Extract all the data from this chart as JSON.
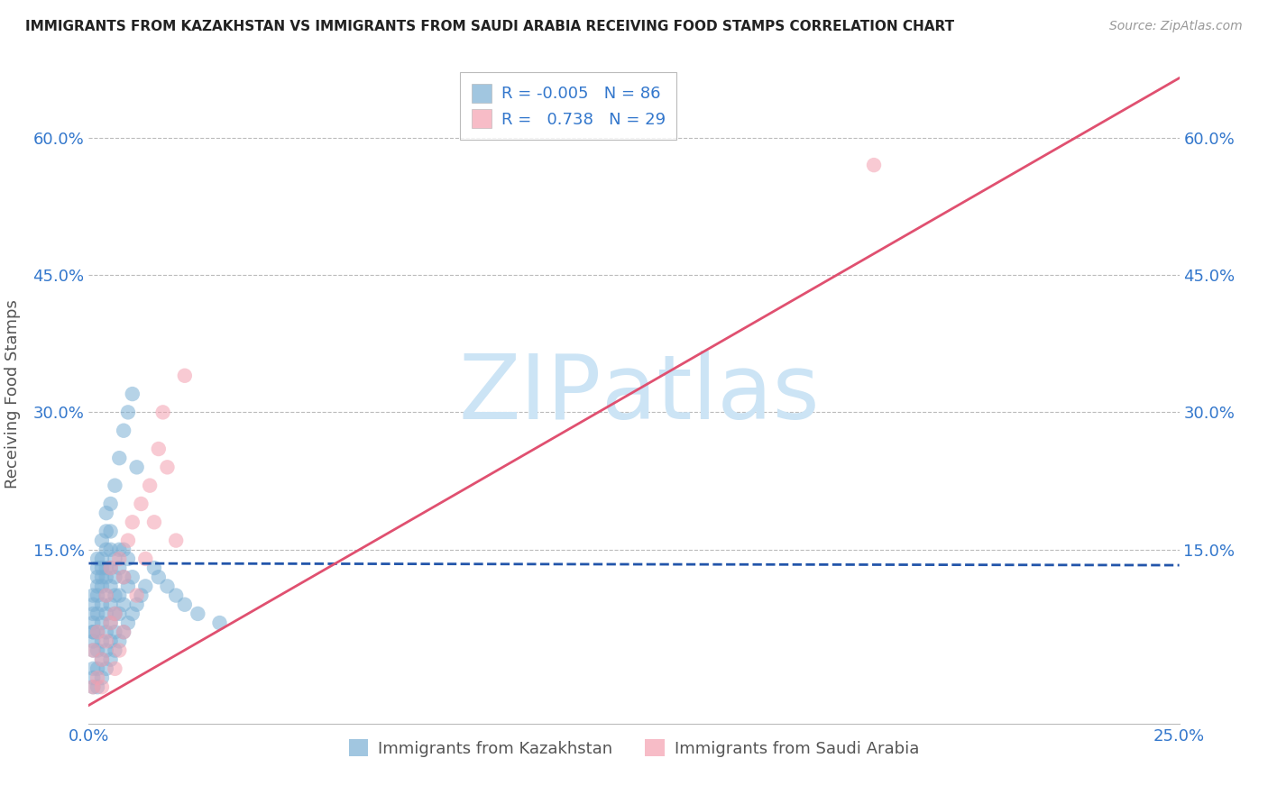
{
  "title": "IMMIGRANTS FROM KAZAKHSTAN VS IMMIGRANTS FROM SAUDI ARABIA RECEIVING FOOD STAMPS CORRELATION CHART",
  "source": "Source: ZipAtlas.com",
  "xlabel_blue": "Immigrants from Kazakhstan",
  "xlabel_pink": "Immigrants from Saudi Arabia",
  "ylabel": "Receiving Food Stamps",
  "r_blue": -0.005,
  "n_blue": 86,
  "r_pink": 0.738,
  "n_pink": 29,
  "xlim": [
    0.0,
    0.25
  ],
  "ylim": [
    -0.04,
    0.68
  ],
  "ytick_positions": [
    0.15,
    0.3,
    0.45,
    0.6
  ],
  "ytick_labels": [
    "15.0%",
    "30.0%",
    "45.0%",
    "60.0%"
  ],
  "background_color": "#ffffff",
  "blue_color": "#7aafd4",
  "pink_color": "#f4a0b0",
  "blue_line_color": "#2255aa",
  "pink_line_color": "#e05070",
  "title_color": "#222222",
  "axis_label_color": "#555555",
  "tick_color": "#3377cc",
  "grid_color": "#bbbbbb",
  "watermark_color": "#cce4f5",
  "blue_line_y0": 0.135,
  "blue_line_y1": 0.133,
  "pink_line_y0": -0.02,
  "pink_line_y1": 0.665,
  "kazakhstan_x": [
    0.001,
    0.001,
    0.001,
    0.001,
    0.001,
    0.001,
    0.001,
    0.001,
    0.001,
    0.001,
    0.002,
    0.002,
    0.002,
    0.002,
    0.002,
    0.002,
    0.002,
    0.002,
    0.002,
    0.002,
    0.003,
    0.003,
    0.003,
    0.003,
    0.003,
    0.003,
    0.003,
    0.003,
    0.003,
    0.003,
    0.004,
    0.004,
    0.004,
    0.004,
    0.004,
    0.004,
    0.004,
    0.004,
    0.004,
    0.004,
    0.005,
    0.005,
    0.005,
    0.005,
    0.005,
    0.005,
    0.005,
    0.005,
    0.005,
    0.006,
    0.006,
    0.006,
    0.006,
    0.006,
    0.006,
    0.006,
    0.007,
    0.007,
    0.007,
    0.007,
    0.007,
    0.007,
    0.008,
    0.008,
    0.008,
    0.008,
    0.008,
    0.009,
    0.009,
    0.009,
    0.009,
    0.01,
    0.01,
    0.01,
    0.011,
    0.011,
    0.012,
    0.013,
    0.015,
    0.016,
    0.018,
    0.02,
    0.022,
    0.025,
    0.03,
    0.001
  ],
  "kazakhstan_y": [
    0.0,
    0.01,
    0.02,
    0.04,
    0.05,
    0.06,
    0.07,
    0.08,
    0.09,
    0.1,
    0.0,
    0.02,
    0.04,
    0.06,
    0.08,
    0.1,
    0.11,
    0.12,
    0.13,
    0.14,
    0.01,
    0.03,
    0.05,
    0.07,
    0.09,
    0.11,
    0.12,
    0.13,
    0.14,
    0.16,
    0.02,
    0.04,
    0.06,
    0.08,
    0.1,
    0.12,
    0.13,
    0.15,
    0.17,
    0.19,
    0.03,
    0.05,
    0.07,
    0.09,
    0.11,
    0.13,
    0.15,
    0.17,
    0.2,
    0.04,
    0.06,
    0.08,
    0.1,
    0.12,
    0.14,
    0.22,
    0.25,
    0.05,
    0.08,
    0.1,
    0.13,
    0.15,
    0.06,
    0.09,
    0.12,
    0.15,
    0.28,
    0.07,
    0.11,
    0.14,
    0.3,
    0.08,
    0.12,
    0.32,
    0.09,
    0.24,
    0.1,
    0.11,
    0.13,
    0.12,
    0.11,
    0.1,
    0.09,
    0.08,
    0.07,
    0.06
  ],
  "saudi_x": [
    0.001,
    0.001,
    0.002,
    0.002,
    0.003,
    0.003,
    0.004,
    0.004,
    0.005,
    0.005,
    0.006,
    0.006,
    0.007,
    0.007,
    0.008,
    0.008,
    0.009,
    0.01,
    0.011,
    0.012,
    0.013,
    0.014,
    0.015,
    0.016,
    0.017,
    0.018,
    0.02,
    0.022,
    0.18
  ],
  "saudi_y": [
    0.0,
    0.04,
    0.01,
    0.06,
    0.03,
    0.0,
    0.05,
    0.1,
    0.07,
    0.13,
    0.02,
    0.08,
    0.04,
    0.14,
    0.12,
    0.06,
    0.16,
    0.18,
    0.1,
    0.2,
    0.14,
    0.22,
    0.18,
    0.26,
    0.3,
    0.24,
    0.16,
    0.34,
    0.57
  ]
}
